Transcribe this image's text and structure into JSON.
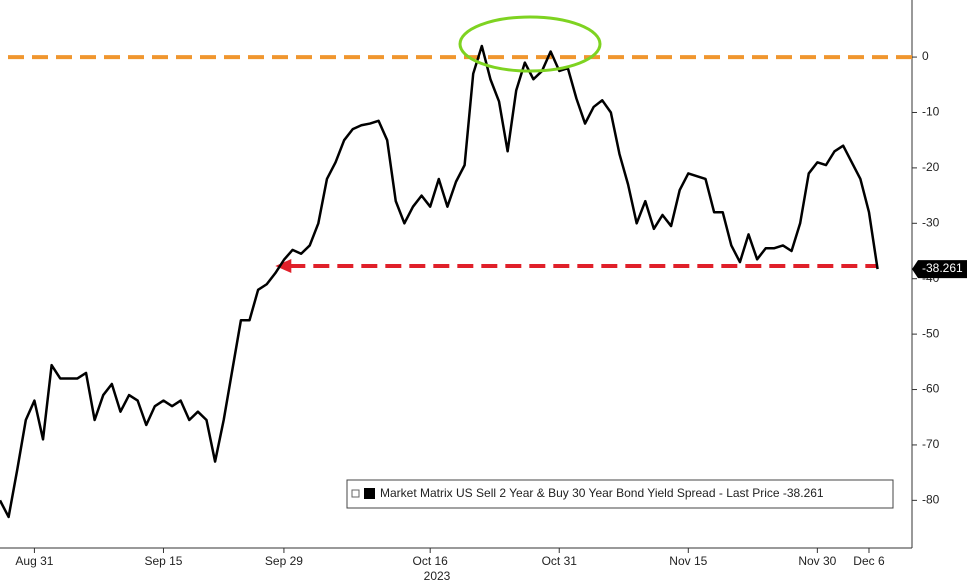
{
  "chart_data": {
    "type": "line",
    "xlabel": "2023",
    "x": [
      "2023-08-27",
      "2023-08-28",
      "2023-08-29",
      "2023-08-30",
      "2023-08-31",
      "2023-09-01",
      "2023-09-02",
      "2023-09-03",
      "2023-09-04",
      "2023-09-05",
      "2023-09-06",
      "2023-09-07",
      "2023-09-08",
      "2023-09-09",
      "2023-09-10",
      "2023-09-11",
      "2023-09-12",
      "2023-09-13",
      "2023-09-14",
      "2023-09-15",
      "2023-09-16",
      "2023-09-17",
      "2023-09-18",
      "2023-09-19",
      "2023-09-20",
      "2023-09-21",
      "2023-09-22",
      "2023-09-23",
      "2023-09-24",
      "2023-09-25",
      "2023-09-26",
      "2023-09-27",
      "2023-09-28",
      "2023-09-29",
      "2023-09-30",
      "2023-10-01",
      "2023-10-02",
      "2023-10-03",
      "2023-10-04",
      "2023-10-05",
      "2023-10-06",
      "2023-10-07",
      "2023-10-08",
      "2023-10-09",
      "2023-10-10",
      "2023-10-11",
      "2023-10-12",
      "2023-10-13",
      "2023-10-14",
      "2023-10-15",
      "2023-10-16",
      "2023-10-17",
      "2023-10-18",
      "2023-10-19",
      "2023-10-20",
      "2023-10-21",
      "2023-10-22",
      "2023-10-23",
      "2023-10-24",
      "2023-10-25",
      "2023-10-26",
      "2023-10-27",
      "2023-10-28",
      "2023-10-29",
      "2023-10-30",
      "2023-10-31",
      "2023-11-01",
      "2023-11-02",
      "2023-11-03",
      "2023-11-04",
      "2023-11-05",
      "2023-11-06",
      "2023-11-07",
      "2023-11-08",
      "2023-11-09",
      "2023-11-10",
      "2023-11-11",
      "2023-11-12",
      "2023-11-13",
      "2023-11-14",
      "2023-11-15",
      "2023-11-16",
      "2023-11-17",
      "2023-11-18",
      "2023-11-19",
      "2023-11-20",
      "2023-11-21",
      "2023-11-22",
      "2023-11-23",
      "2023-11-24",
      "2023-11-25",
      "2023-11-26",
      "2023-11-27",
      "2023-11-28",
      "2023-11-29",
      "2023-11-30",
      "2023-12-01",
      "2023-12-02",
      "2023-12-03",
      "2023-12-04",
      "2023-12-05",
      "2023-12-06",
      "2023-12-07"
    ],
    "series": [
      {
        "name": "Market Matrix US Sell 2 Year & Buy 30 Year Bond Yield Spread - Last Price -38.261",
        "color": "#000000",
        "values": [
          -80,
          -83,
          -74.5,
          -65.5,
          -62,
          -69,
          -55.6,
          -58,
          -58,
          -58,
          -57,
          -65.5,
          -61,
          -59,
          -64,
          -61,
          -62,
          -66.4,
          -63,
          -62,
          -63,
          -62,
          -65.5,
          -64,
          -65.5,
          -73,
          -65.5,
          -56.5,
          -47.5,
          -47.5,
          -42,
          -41,
          -39,
          -36.6,
          -34.8,
          -35.5,
          -34,
          -30,
          -22,
          -19,
          -15,
          -13,
          -12.3,
          -12,
          -11.5,
          -15,
          -26,
          -30,
          -27,
          -25,
          -27,
          -22,
          -27,
          -22.5,
          -19.5,
          -3,
          2,
          -4,
          -8,
          -17,
          -6,
          -1,
          -4,
          -2.5,
          1,
          -2.5,
          -2,
          -7.5,
          -12,
          -9,
          -7.8,
          -10,
          -17.5,
          -23,
          -30,
          -26,
          -31,
          -28.5,
          -30.5,
          -24,
          -21,
          -21.5,
          -22,
          -28,
          -28,
          -34,
          -37,
          -32,
          -36.5,
          -34.5,
          -34.5,
          -34,
          -35,
          -30,
          -21,
          -19,
          -19.5,
          -17,
          -16,
          -19,
          -22,
          -28,
          -38.261
        ]
      }
    ],
    "xlim": [
      "2023-08-27",
      "2023-12-11"
    ],
    "xticks": [
      {
        "value": "2023-08-31",
        "label": "Aug 31"
      },
      {
        "value": "2023-09-15",
        "label": "Sep 15"
      },
      {
        "value": "2023-09-29",
        "label": "Sep 29"
      },
      {
        "value": "2023-10-16",
        "label": "Oct 16"
      },
      {
        "value": "2023-10-31",
        "label": "Oct 31"
      },
      {
        "value": "2023-11-15",
        "label": "Nov 15"
      },
      {
        "value": "2023-11-30",
        "label": "Nov 30"
      },
      {
        "value": "2023-12-06",
        "label": "Dec 6"
      }
    ],
    "ylim": [
      -88.6,
      10.3
    ],
    "yticks": [
      0,
      -10,
      -20,
      -30,
      -40,
      -50,
      -60,
      -70,
      -80
    ],
    "reference_lines": [
      {
        "value": 0,
        "color": "#f0962e",
        "from": "2023-08-27",
        "to": "2023-12-11"
      },
      {
        "value": -37.7,
        "color": "#e0202a",
        "from": "2023-09-28",
        "to": "2023-12-07"
      }
    ]
  }
}
